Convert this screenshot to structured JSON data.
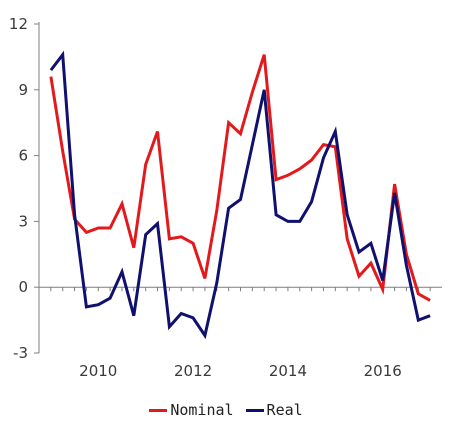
{
  "chart_data": {
    "type": "line",
    "title": "",
    "xlabel": "",
    "ylabel": "",
    "ylim": [
      -3,
      12
    ],
    "xlim": [
      2008.75,
      2017.25
    ],
    "grid": false,
    "legend_position": "bottom",
    "y_ticks": [
      "-3",
      "0",
      "3",
      "6",
      "9",
      "12"
    ],
    "x_ticks": [
      "2010",
      "2012",
      "2014",
      "2016"
    ],
    "x": [
      2009.0,
      2009.25,
      2009.5,
      2009.75,
      2010.0,
      2010.25,
      2010.5,
      2010.75,
      2011.0,
      2011.25,
      2011.5,
      2011.75,
      2012.0,
      2012.25,
      2012.5,
      2012.75,
      2013.0,
      2013.25,
      2013.5,
      2013.75,
      2014.0,
      2014.25,
      2014.5,
      2014.75,
      2015.0,
      2015.25,
      2015.5,
      2015.75,
      2016.0,
      2016.25,
      2016.5,
      2016.75,
      2017.0
    ],
    "series": [
      {
        "name": "Nominal",
        "color": "#e31a1c",
        "values": [
          9.6,
          6.2,
          3.1,
          2.5,
          2.7,
          2.7,
          3.8,
          1.8,
          5.6,
          7.1,
          2.2,
          2.3,
          2.0,
          0.4,
          3.5,
          7.5,
          7.0,
          8.9,
          10.6,
          4.9,
          5.1,
          5.4,
          5.8,
          6.5,
          6.4,
          2.2,
          0.5,
          1.1,
          -0.1,
          4.7,
          1.5,
          -0.3,
          -0.6
        ]
      },
      {
        "name": "Real",
        "color": "#10106e",
        "values": [
          9.9,
          10.6,
          3.3,
          -0.9,
          -0.8,
          -0.5,
          0.7,
          -1.3,
          2.4,
          2.9,
          -1.8,
          -1.2,
          -1.4,
          -2.2,
          0.2,
          3.6,
          4.0,
          6.5,
          9.0,
          3.3,
          3.0,
          3.0,
          3.9,
          5.9,
          7.1,
          3.3,
          1.6,
          2.0,
          0.3,
          4.3,
          1.0,
          -1.5,
          -1.3
        ]
      }
    ]
  }
}
